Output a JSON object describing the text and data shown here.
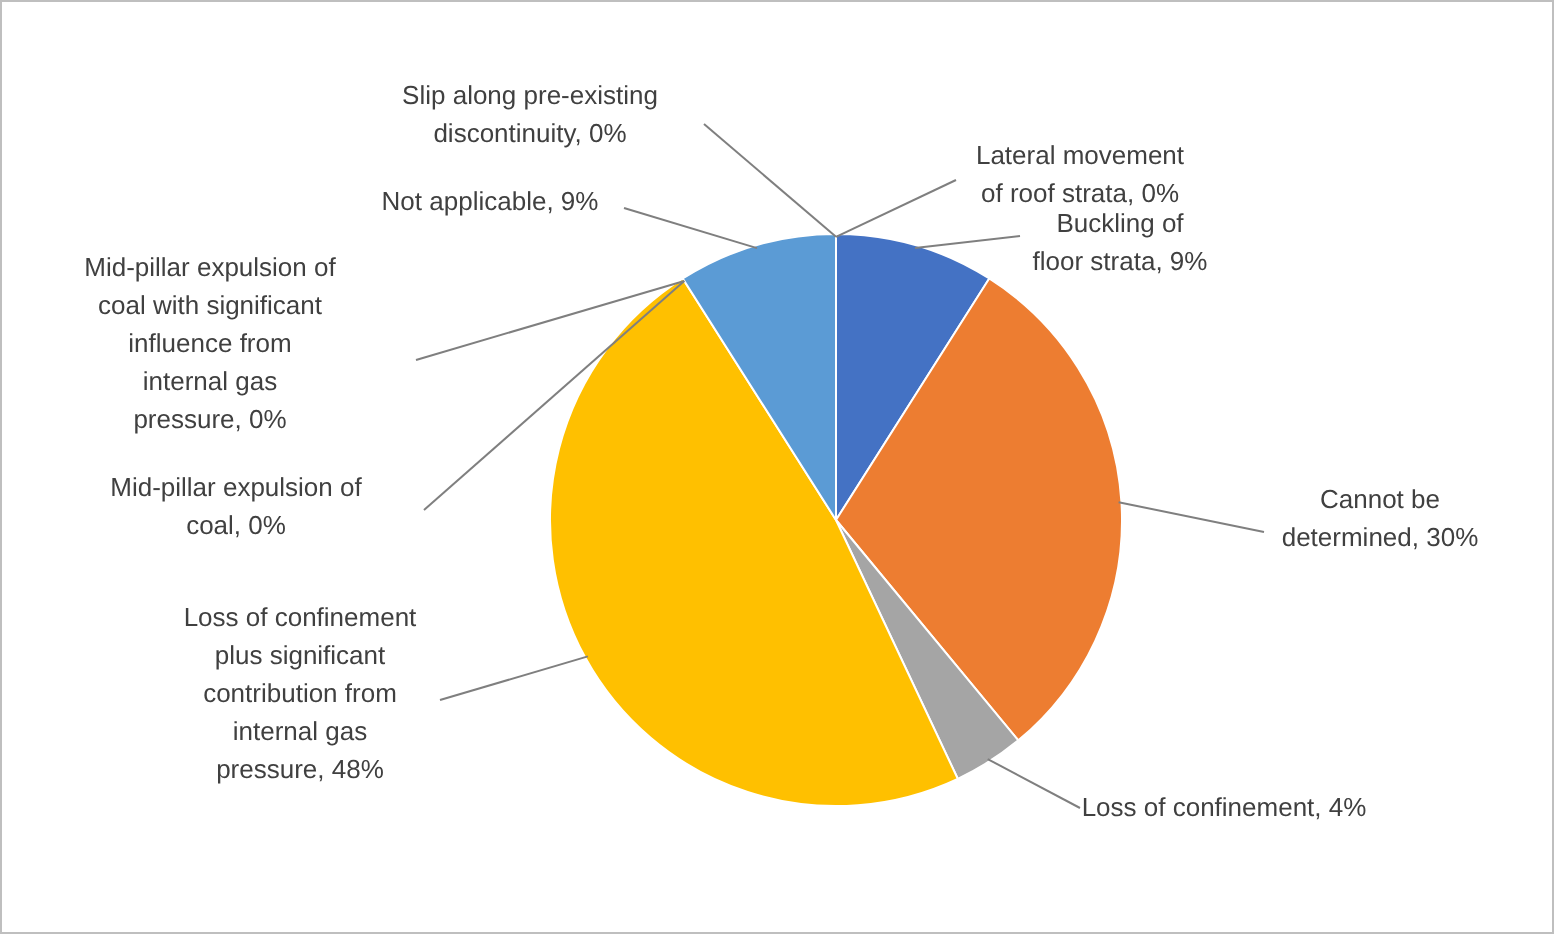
{
  "chart_data": {
    "type": "pie",
    "categories": [
      "Lateral movement of roof strata",
      "Buckling of floor strata",
      "Cannot be determined",
      "Loss of confinement",
      "Loss of confinement plus significant contribution from internal gas pressure",
      "Mid-pillar expulsion of coal",
      "Mid-pillar expulsion of coal with significant influence from internal gas pressure",
      "Not applicable",
      "Slip along pre-existing discontinuity"
    ],
    "values": [
      0,
      9,
      30,
      4,
      48,
      0,
      0,
      9,
      0
    ],
    "value_labels": [
      ", 0%",
      ", 9%",
      ", 30%",
      ", 4%",
      ", 48%",
      ", 0%",
      ", 0%",
      ", 9%",
      ", 0%"
    ],
    "colors": [
      "#264478",
      "#4472c4",
      "#ed7d31",
      "#a5a5a5",
      "#ffc000",
      "#9e480e",
      "#636363",
      "#5b9bd5",
      "#997300"
    ]
  }
}
